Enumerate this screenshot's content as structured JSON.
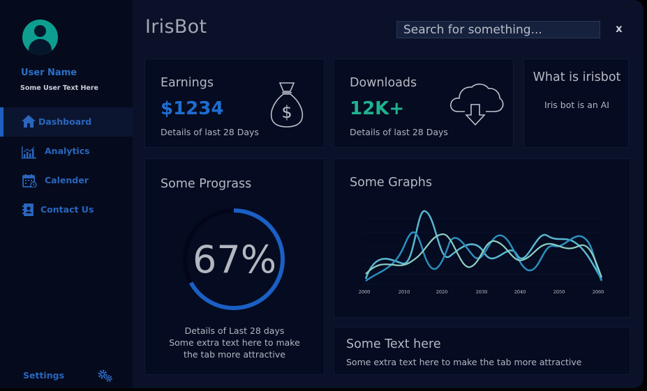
{
  "app": {
    "title": "IrisBot",
    "close_label": "x"
  },
  "search": {
    "placeholder": "Search for something..."
  },
  "user": {
    "name": "User Name",
    "subtitle": "Some User Text Here"
  },
  "nav": {
    "items": [
      {
        "label": "Dashboard",
        "icon": "home-icon",
        "active": true
      },
      {
        "label": "Analytics",
        "icon": "bar-chart-icon",
        "active": false
      },
      {
        "label": "Calender",
        "icon": "calendar-icon",
        "active": false
      },
      {
        "label": "Contact Us",
        "icon": "contact-book-icon",
        "active": false
      }
    ],
    "settings_label": "Settings",
    "settings_icon": "gears-icon"
  },
  "earnings": {
    "title": "Earnings",
    "value": "$1234",
    "detail": "Details of last 28 Days",
    "icon": "money-bag-icon"
  },
  "downloads": {
    "title": "Downloads",
    "value": "12K+",
    "detail": "Details of last 28 Days",
    "icon": "cloud-download-icon"
  },
  "about": {
    "title": "What is irisbot",
    "text": "Iris bot is an AI"
  },
  "progress": {
    "title": "Some Prograss",
    "value": 0.67,
    "value_label": "67%",
    "line1": "Details of Last 28 days",
    "line2": "Some extra text here to make",
    "line3": "the tab more attractive"
  },
  "graphs": {
    "title": "Some Graphs",
    "x_ticks": [
      "2000",
      "2010",
      "2020",
      "2030",
      "2040",
      "2050",
      "2060"
    ]
  },
  "text_card": {
    "title": "Some Text here",
    "text": "Some extra text here to make the tab more  attractive"
  },
  "colors": {
    "accent_blue": "#1f6dd1",
    "accent_green": "#1fb28e",
    "background": "#0a1128",
    "card": "#050b20"
  }
}
